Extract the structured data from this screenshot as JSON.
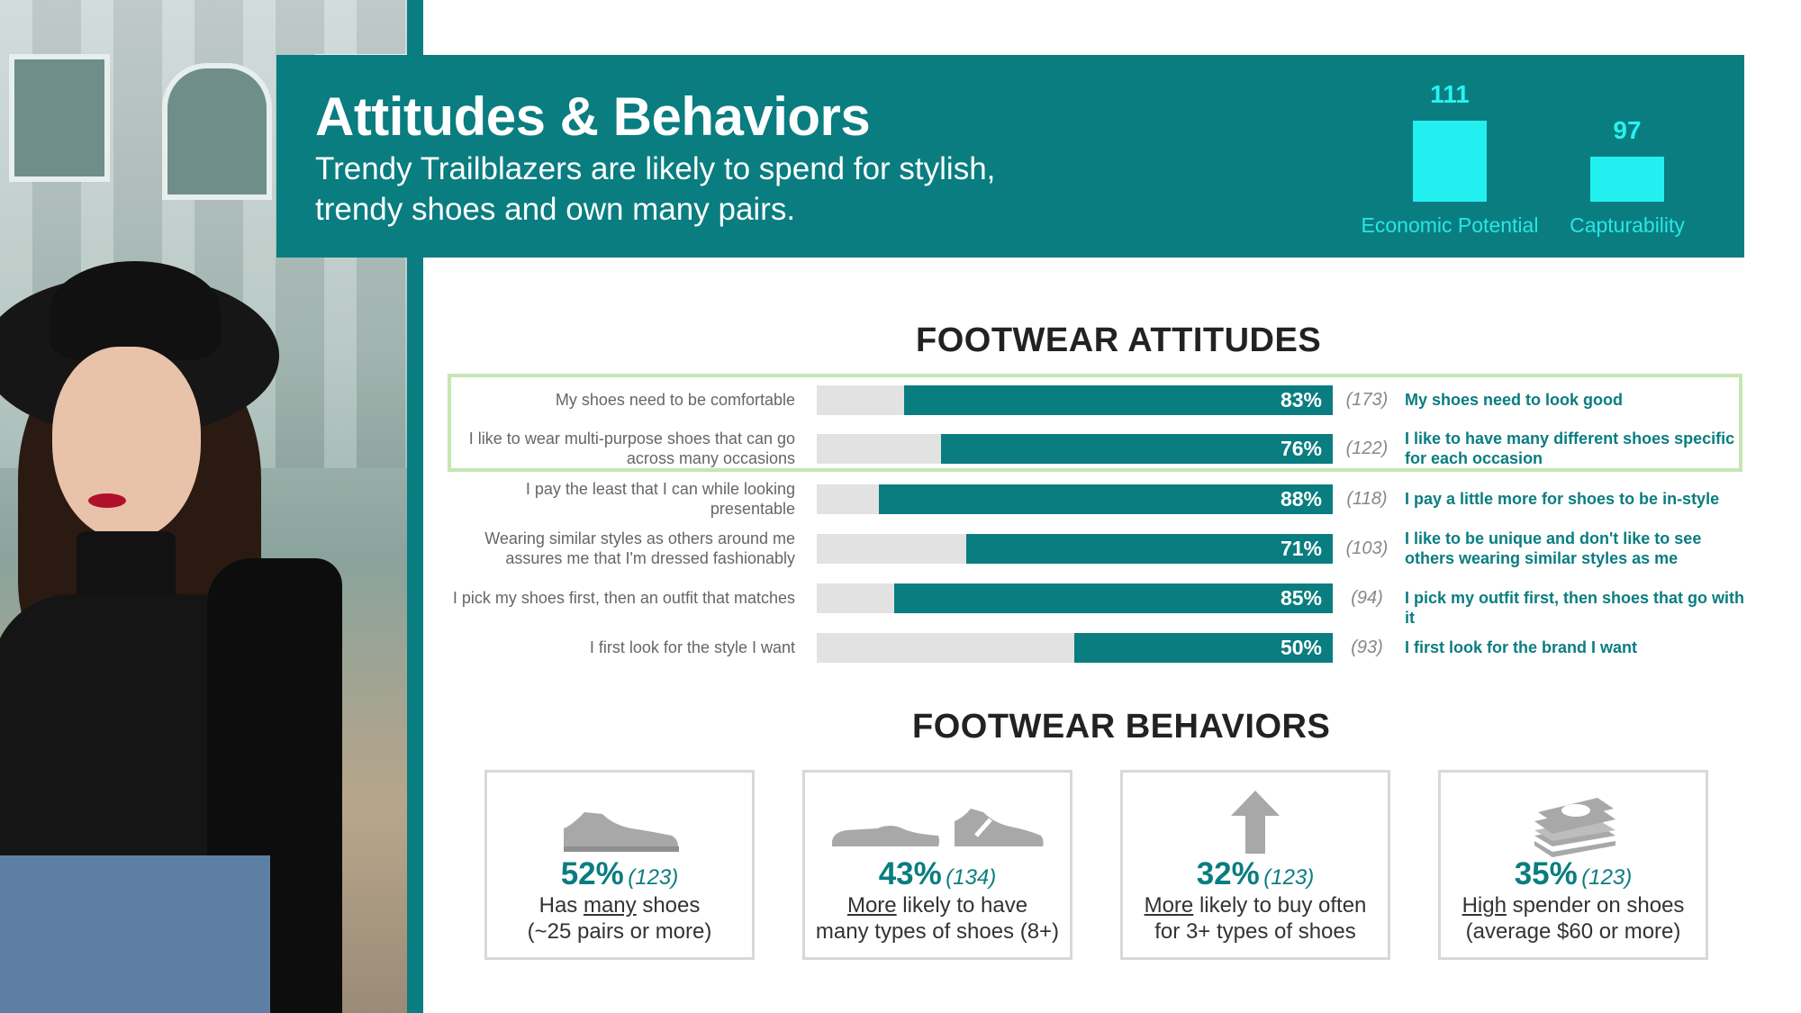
{
  "header": {
    "title": "Attitudes & Behaviors",
    "subtitle": "Trendy Trailblazers are likely to spend for stylish, trendy shoes and own many pairs."
  },
  "metrics": [
    {
      "value": "111",
      "label": "Economic Potential"
    },
    {
      "value": "97",
      "label": "Capturability"
    }
  ],
  "colors": {
    "accent": "#0a7d80",
    "metric": "#22f0f0",
    "highlight": "#c5e7b2",
    "track": "#e2e2e2"
  },
  "attitudes": {
    "title": "FOOTWEAR ATTITUDES",
    "rows": [
      {
        "left": "My shoes need to be comfortable",
        "pct": "83%",
        "value": 83,
        "index": "(173)",
        "right": "My shoes need to look good"
      },
      {
        "left": "I like to wear multi-purpose shoes that can go across many occasions",
        "pct": "76%",
        "value": 76,
        "index": "(122)",
        "right": "I like to have many different shoes specific for each occasion"
      },
      {
        "left": "I pay the least that I can while  looking presentable",
        "pct": "88%",
        "value": 88,
        "index": "(118)",
        "right": "I pay a little more for shoes to be in-style"
      },
      {
        "left": "Wearing similar styles as others around me assures me that I'm dressed fashionably",
        "pct": "71%",
        "value": 71,
        "index": "(103)",
        "right": "I like to be unique and don't like to see others wearing similar styles as me"
      },
      {
        "left": "I pick my shoes first, then an outfit that matches",
        "pct": "85%",
        "value": 85,
        "index": "(94)",
        "right": "I pick my outfit first, then shoes that go with it"
      },
      {
        "left": "I first look for the style I want",
        "pct": "50%",
        "value": 50,
        "index": "(93)",
        "right": "I first look for the brand I want"
      }
    ]
  },
  "behaviors": {
    "title": "FOOTWEAR BEHAVIORS",
    "cards": [
      {
        "icon": "sneaker-icon",
        "pct": "52%",
        "index": "(123)",
        "l1_pre": "Has ",
        "l1_u": "many",
        "l1_post": " shoes",
        "line2": "(~25 pairs or more)"
      },
      {
        "icon": "shoes-pair-icon",
        "pct": "43%",
        "index": "(134)",
        "l1_pre": "",
        "l1_u": "More",
        "l1_post": " likely to have",
        "line2": "many types of shoes (8+)"
      },
      {
        "icon": "arrow-up-icon",
        "pct": "32%",
        "index": "(123)",
        "l1_pre": "",
        "l1_u": "More",
        "l1_post": " likely to buy often",
        "line2": "for 3+ types of shoes"
      },
      {
        "icon": "money-stack-icon",
        "pct": "35%",
        "index": "(123)",
        "l1_pre": "",
        "l1_u": "High",
        "l1_post": " spender on shoes",
        "line2": "(average $60 or more)"
      }
    ]
  }
}
